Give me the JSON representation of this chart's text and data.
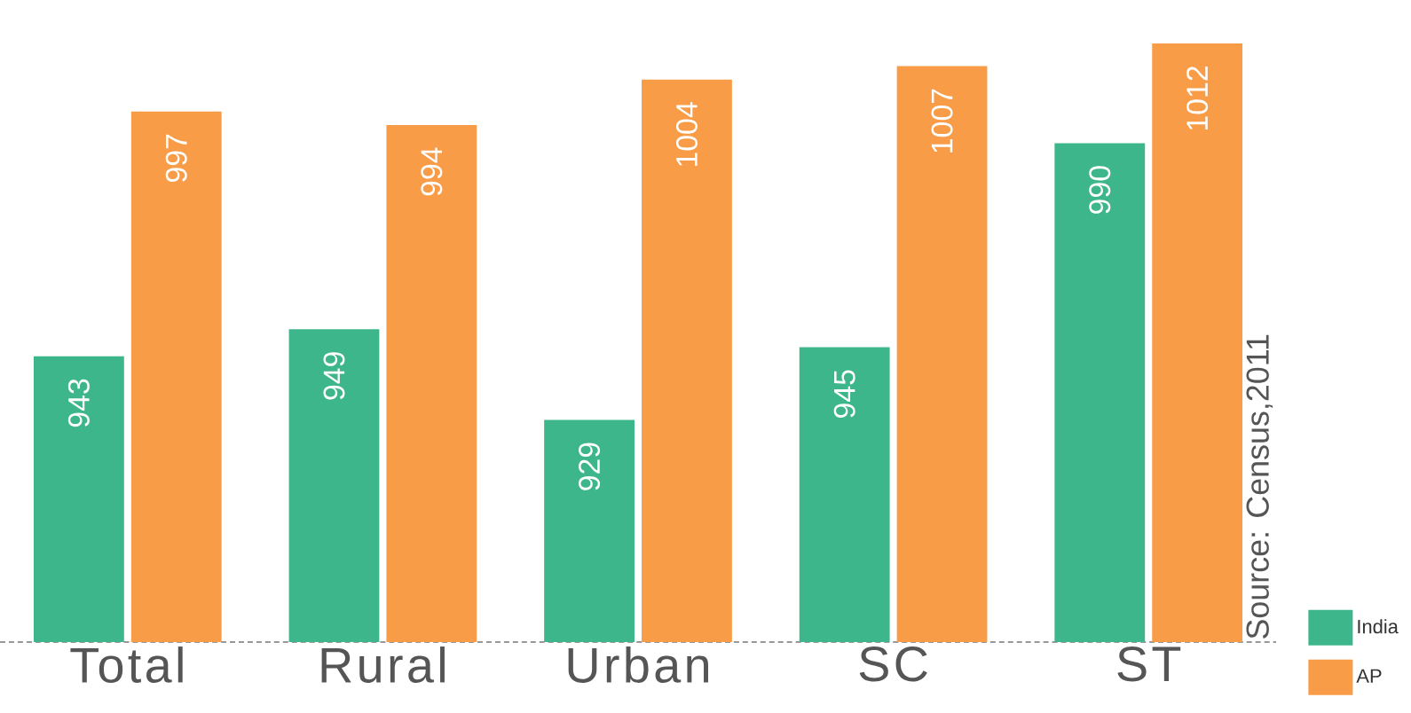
{
  "chart_data": {
    "type": "bar",
    "categories": [
      "Total",
      "Rural",
      "Urban",
      "SC",
      "ST"
    ],
    "series": [
      {
        "name": "India",
        "color": "#3cb68a",
        "values": [
          943,
          949,
          929,
          945,
          990
        ]
      },
      {
        "name": "AP",
        "color": "#f89c47",
        "values": [
          997,
          994,
          1004,
          1007,
          1012
        ]
      }
    ],
    "ylim": [
      880,
      1012
    ],
    "data_labels": true,
    "legend": "bottom right",
    "annotations": [
      "Source: Census,2011"
    ]
  }
}
